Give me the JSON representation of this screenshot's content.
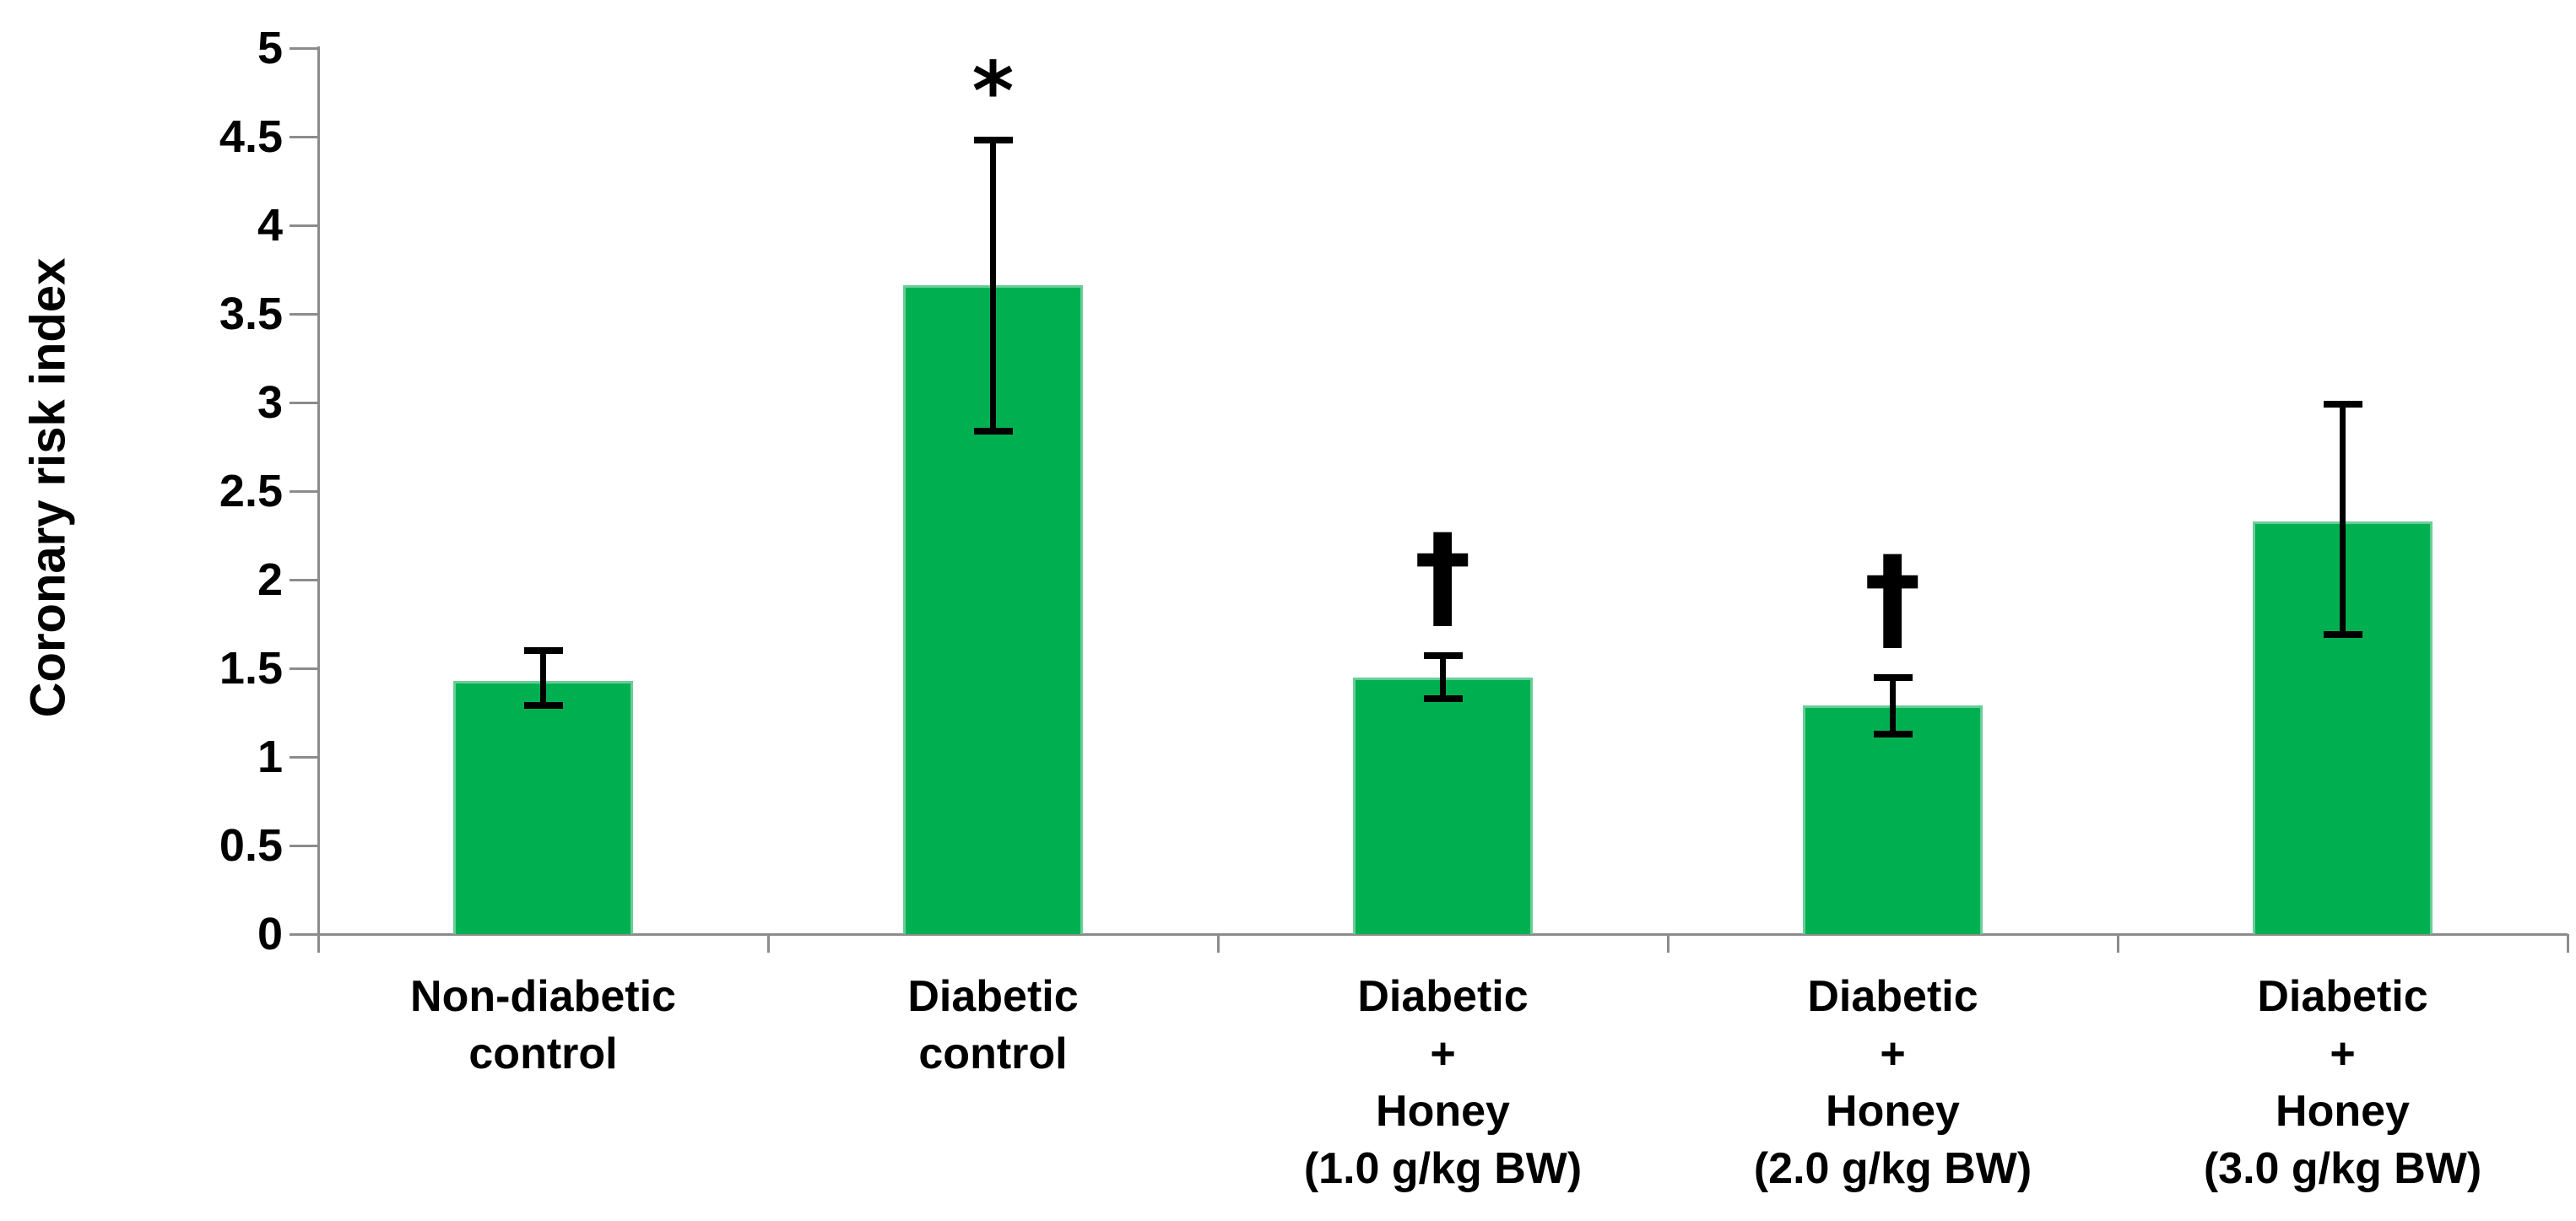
{
  "page": {
    "background": "#ffffff"
  },
  "y_axis": {
    "title": "Coronary risk index"
  },
  "chart_data": {
    "type": "bar",
    "title": "",
    "xlabel": "",
    "ylabel": "Coronary risk index",
    "ylim": [
      0,
      5
    ],
    "ytick_interval": 0.5,
    "ytick_labels": [
      "0",
      "0.5",
      "1",
      "1.5",
      "2",
      "2.5",
      "3",
      "3.5",
      "4",
      "4.5",
      "5"
    ],
    "grid": false,
    "legend": false,
    "bar_color": "#00B050",
    "bar_edge_color": "#69cd97",
    "axis_color": "#8C8C8C",
    "error_bar_color": "#000000",
    "text_color": "#000000",
    "categories": [
      [
        "Non-diabetic",
        "control"
      ],
      [
        "Diabetic",
        "control"
      ],
      [
        "Diabetic",
        "+",
        "Honey",
        "(1.0 g/kg BW)"
      ],
      [
        "Diabetic",
        "+",
        "Honey",
        "(2.0 g/kg BW)"
      ],
      [
        "Diabetic",
        "+",
        "Honey",
        "(3.0 g/kg BW)"
      ]
    ],
    "values": [
      1.43,
      3.66,
      1.45,
      1.29,
      2.33
    ],
    "error_low": [
      1.29,
      2.84,
      1.33,
      1.13,
      1.69
    ],
    "error_high": [
      1.6,
      4.48,
      1.57,
      1.45,
      2.99
    ],
    "annotations": [
      "",
      "*",
      "†",
      "†",
      ""
    ]
  }
}
